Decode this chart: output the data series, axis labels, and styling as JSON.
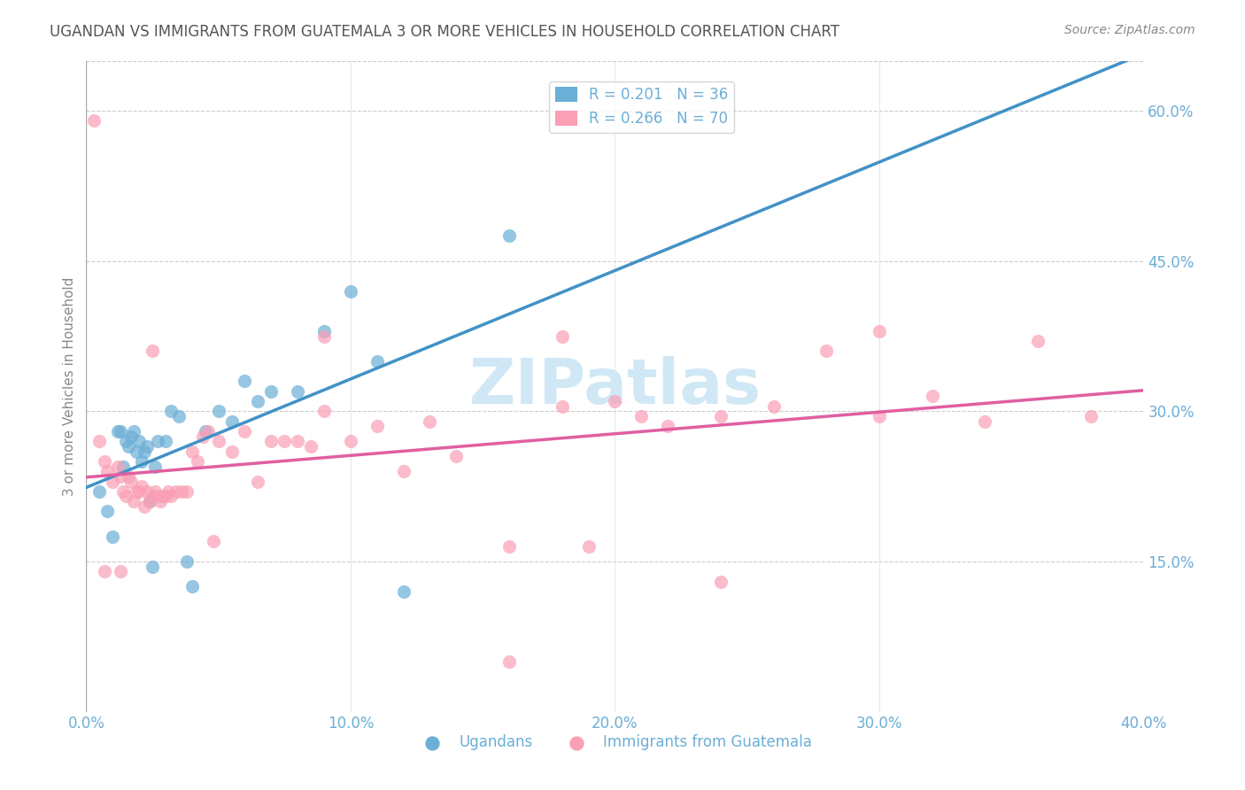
{
  "title": "UGANDAN VS IMMIGRANTS FROM GUATEMALA 3 OR MORE VEHICLES IN HOUSEHOLD CORRELATION CHART",
  "source": "Source: ZipAtlas.com",
  "xlabel_bottom": "",
  "ylabel": "3 or more Vehicles in Household",
  "x_tick_labels": [
    "0.0%",
    "10.0%",
    "20.0%",
    "30.0%",
    "40.0%"
  ],
  "x_tick_values": [
    0.0,
    0.1,
    0.2,
    0.3,
    0.4
  ],
  "y_tick_labels": [
    "15.0%",
    "30.0%",
    "45.0%",
    "60.0%"
  ],
  "y_tick_values": [
    0.15,
    0.3,
    0.45,
    0.6
  ],
  "xlim": [
    0.0,
    0.4
  ],
  "ylim": [
    0.0,
    0.65
  ],
  "legend1_r": "0.201",
  "legend1_n": "36",
  "legend2_r": "0.266",
  "legend2_n": "70",
  "color_blue": "#6baed6",
  "color_pink": "#fa9fb5",
  "line_blue": "#4292c6",
  "line_pink": "#e05fa0",
  "title_color": "#555555",
  "axis_label_color": "#6baed6",
  "watermark_color": "#d0e8f5",
  "ugandan_x": [
    0.005,
    0.008,
    0.01,
    0.012,
    0.013,
    0.014,
    0.015,
    0.016,
    0.017,
    0.018,
    0.019,
    0.02,
    0.021,
    0.022,
    0.023,
    0.024,
    0.025,
    0.026,
    0.027,
    0.03,
    0.032,
    0.035,
    0.038,
    0.04,
    0.045,
    0.05,
    0.055,
    0.06,
    0.065,
    0.07,
    0.08,
    0.09,
    0.1,
    0.11,
    0.12,
    0.16
  ],
  "ugandan_y": [
    0.22,
    0.2,
    0.175,
    0.28,
    0.28,
    0.245,
    0.27,
    0.265,
    0.275,
    0.28,
    0.26,
    0.27,
    0.25,
    0.26,
    0.265,
    0.21,
    0.145,
    0.245,
    0.27,
    0.27,
    0.3,
    0.295,
    0.15,
    0.125,
    0.28,
    0.3,
    0.29,
    0.33,
    0.31,
    0.32,
    0.32,
    0.38,
    0.42,
    0.35,
    0.12,
    0.475
  ],
  "guatemala_x": [
    0.003,
    0.005,
    0.007,
    0.008,
    0.01,
    0.012,
    0.013,
    0.014,
    0.015,
    0.016,
    0.017,
    0.018,
    0.019,
    0.02,
    0.021,
    0.022,
    0.023,
    0.024,
    0.025,
    0.026,
    0.027,
    0.028,
    0.029,
    0.03,
    0.031,
    0.032,
    0.034,
    0.036,
    0.038,
    0.04,
    0.042,
    0.044,
    0.046,
    0.048,
    0.05,
    0.055,
    0.06,
    0.065,
    0.07,
    0.075,
    0.08,
    0.085,
    0.09,
    0.1,
    0.11,
    0.12,
    0.13,
    0.14,
    0.16,
    0.18,
    0.2,
    0.22,
    0.24,
    0.26,
    0.28,
    0.3,
    0.32,
    0.34,
    0.36,
    0.38,
    0.007,
    0.013,
    0.025,
    0.18,
    0.19,
    0.3,
    0.24,
    0.16,
    0.09,
    0.21
  ],
  "guatemala_y": [
    0.59,
    0.27,
    0.25,
    0.24,
    0.23,
    0.245,
    0.235,
    0.22,
    0.215,
    0.235,
    0.23,
    0.21,
    0.22,
    0.22,
    0.225,
    0.205,
    0.22,
    0.21,
    0.215,
    0.22,
    0.215,
    0.21,
    0.215,
    0.215,
    0.22,
    0.215,
    0.22,
    0.22,
    0.22,
    0.26,
    0.25,
    0.275,
    0.28,
    0.17,
    0.27,
    0.26,
    0.28,
    0.23,
    0.27,
    0.27,
    0.27,
    0.265,
    0.3,
    0.27,
    0.285,
    0.24,
    0.29,
    0.255,
    0.165,
    0.305,
    0.31,
    0.285,
    0.295,
    0.305,
    0.36,
    0.295,
    0.315,
    0.29,
    0.37,
    0.295,
    0.14,
    0.14,
    0.36,
    0.375,
    0.165,
    0.38,
    0.13,
    0.05,
    0.375,
    0.295
  ]
}
